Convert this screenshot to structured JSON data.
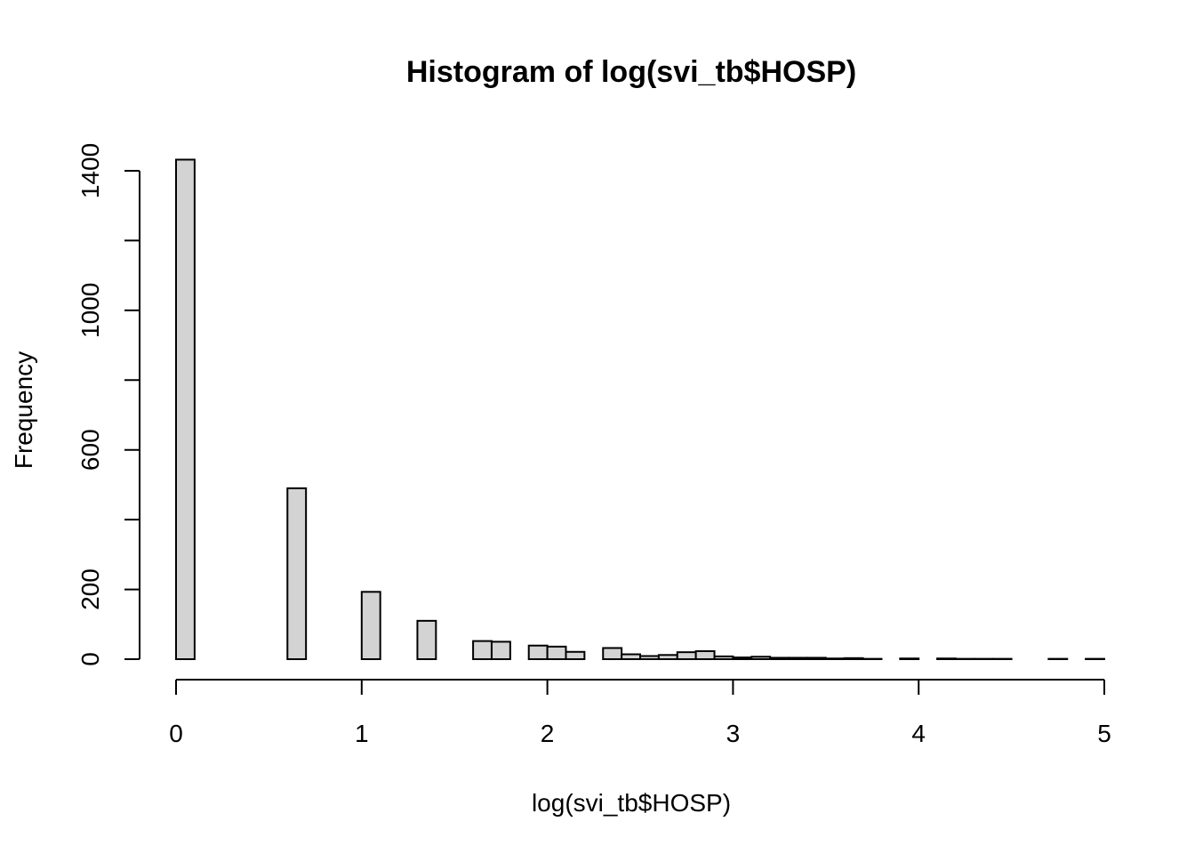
{
  "chart_data": {
    "type": "bar",
    "title": "Histogram of log(svi_tb$HOSP)",
    "xlabel": "log(svi_tb$HOSP)",
    "ylabel": "Frequency",
    "bin_width": 0.1,
    "x_start": 0,
    "xlim": [
      0,
      5
    ],
    "ylim": [
      0,
      1400
    ],
    "x_ticks": [
      "0",
      "1",
      "2",
      "3",
      "4",
      "5"
    ],
    "y_ticks": [
      "0",
      "200",
      "600",
      "1000",
      "1400"
    ],
    "y_minor_ticks": [
      400,
      800,
      1200
    ],
    "values": [
      1432,
      0,
      0,
      0,
      0,
      0,
      490,
      0,
      0,
      0,
      193,
      0,
      0,
      110,
      0,
      0,
      52,
      50,
      0,
      39,
      36,
      21,
      0,
      32,
      14,
      9,
      12,
      20,
      23,
      8,
      5,
      7,
      4,
      4,
      4,
      2,
      3,
      1,
      0,
      2,
      0,
      2,
      1,
      1,
      1,
      0,
      0,
      1,
      0,
      1
    ],
    "colors": {
      "bar_fill": "#d3d3d3",
      "stroke": "#000000"
    },
    "grid": false,
    "legend": "none"
  }
}
